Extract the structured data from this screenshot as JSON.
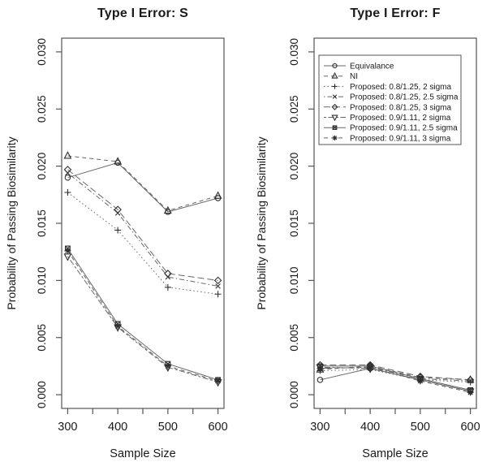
{
  "figure": {
    "panel_titles": {
      "left": "Type I Error: S",
      "right": "Type I Error: F"
    }
  },
  "chart_data": [
    {
      "type": "line",
      "title": "Type I Error: S",
      "xlabel": "Sample Size",
      "ylabel": "Probability of Passing Biosimilarity",
      "x": [
        300,
        400,
        500,
        600
      ],
      "xlim": [
        288,
        612
      ],
      "ylim": [
        -0.0012,
        0.0312
      ],
      "xticks_minor": [
        300,
        350,
        400,
        450,
        500,
        550,
        600
      ],
      "xtick_labels": [
        "300",
        "400",
        "500",
        "600"
      ],
      "ytick_labels": [
        "0.000",
        "0.005",
        "0.010",
        "0.015",
        "0.020",
        "0.025",
        "0.030"
      ],
      "grid": false,
      "series": [
        {
          "name": "Equivalance",
          "marker": "circle",
          "line": "solid",
          "values": [
            0.019,
            0.0203,
            0.016,
            0.0172
          ]
        },
        {
          "name": "NI",
          "marker": "triangle-up",
          "line": "dashed",
          "values": [
            0.0209,
            0.0204,
            0.0161,
            0.0174
          ]
        },
        {
          "name": "Proposed: 0.8/1.25, 2 sigma",
          "marker": "plus",
          "line": "dotted",
          "values": [
            0.0177,
            0.0144,
            0.0094,
            0.0088
          ]
        },
        {
          "name": "Proposed: 0.8/1.25, 2.5 sigma",
          "marker": "x",
          "line": "dotdash",
          "values": [
            0.0194,
            0.0159,
            0.0103,
            0.0095
          ]
        },
        {
          "name": "Proposed: 0.8/1.25, 3 sigma",
          "marker": "diamond",
          "line": "longdash",
          "values": [
            0.0197,
            0.0162,
            0.0106,
            0.01
          ]
        },
        {
          "name": "Proposed: 0.9/1.11, 2 sigma",
          "marker": "triangle-down",
          "line": "twodash",
          "values": [
            0.0121,
            0.0059,
            0.0024,
            0.0011
          ]
        },
        {
          "name": "Proposed: 0.9/1.11, 2.5 sigma",
          "marker": "square-x",
          "line": "solid",
          "values": [
            0.0128,
            0.0062,
            0.0027,
            0.0013
          ]
        },
        {
          "name": "Proposed: 0.9/1.11, 3 sigma",
          "marker": "asterisk",
          "line": "dashed",
          "values": [
            0.0126,
            0.006,
            0.0025,
            0.0012
          ]
        }
      ]
    },
    {
      "type": "line",
      "title": "Type I Error: F",
      "xlabel": "Sample Size",
      "ylabel": "Probability of Passing Biosimilarity",
      "x": [
        300,
        400,
        500,
        600
      ],
      "xlim": [
        288,
        612
      ],
      "ylim": [
        -0.0012,
        0.0312
      ],
      "xticks_minor": [
        300,
        350,
        400,
        450,
        500,
        550,
        600
      ],
      "xtick_labels": [
        "300",
        "400",
        "500",
        "600"
      ],
      "ytick_labels": [
        "0.000",
        "0.005",
        "0.010",
        "0.015",
        "0.020",
        "0.025",
        "0.030"
      ],
      "grid": false,
      "legend": {
        "position": "top-left"
      },
      "series": [
        {
          "name": "Equivalance",
          "marker": "circle",
          "line": "solid",
          "values": [
            0.0013,
            0.0023,
            0.0013,
            0.0003
          ]
        },
        {
          "name": "NI",
          "marker": "triangle-up",
          "line": "dashed",
          "values": [
            0.0022,
            0.0025,
            0.0015,
            0.0013
          ]
        },
        {
          "name": "Proposed: 0.8/1.25, 2 sigma",
          "marker": "plus",
          "line": "dotted",
          "values": [
            0.0021,
            0.0022,
            0.0013,
            0.0011
          ]
        },
        {
          "name": "Proposed: 0.8/1.25, 2.5 sigma",
          "marker": "x",
          "line": "dotdash",
          "values": [
            0.0023,
            0.0024,
            0.0014,
            0.0012
          ]
        },
        {
          "name": "Proposed: 0.8/1.25, 3 sigma",
          "marker": "diamond",
          "line": "longdash",
          "values": [
            0.0026,
            0.0026,
            0.0016,
            0.0013
          ]
        },
        {
          "name": "Proposed: 0.9/1.11, 2 sigma",
          "marker": "triangle-down",
          "line": "twodash",
          "values": [
            0.0024,
            0.0023,
            0.0013,
            0.0003
          ]
        },
        {
          "name": "Proposed: 0.9/1.11, 2.5 sigma",
          "marker": "square-x",
          "line": "solid",
          "values": [
            0.0025,
            0.0025,
            0.0014,
            0.0004
          ]
        },
        {
          "name": "Proposed: 0.9/1.11, 3 sigma",
          "marker": "asterisk",
          "line": "dashed",
          "values": [
            0.0023,
            0.0024,
            0.0012,
            0.0002
          ]
        }
      ]
    }
  ],
  "colors": {
    "frame": "#555555",
    "line": "#666666",
    "marker": "#2f2f2f",
    "text": "#1a1a1a"
  }
}
